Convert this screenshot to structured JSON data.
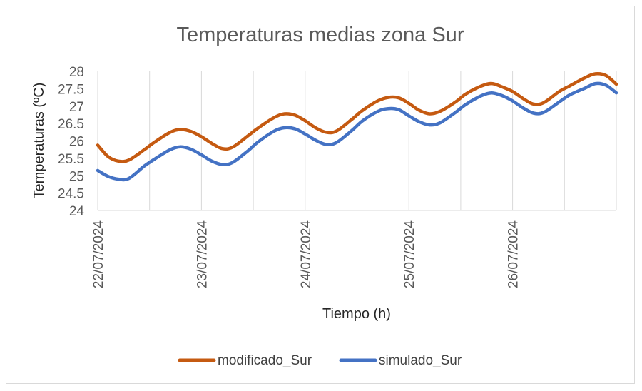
{
  "chart_data": {
    "type": "line",
    "title": "Temperaturas medias zona Sur",
    "xlabel": "Tiempo (h)",
    "ylabel": "Temperaturas (ºC)",
    "ylim": [
      24,
      28
    ],
    "yticks": [
      "24",
      "24.5",
      "25",
      "25.5",
      "26",
      "26.5",
      "27",
      "27.5",
      "28"
    ],
    "xlim_days": [
      0,
      5
    ],
    "xtick_labels": [
      "22/07/2024",
      "23/07/2024",
      "24/07/2024",
      "25/07/2024",
      "26/07/2024"
    ],
    "grid": true,
    "legend_position": "bottom",
    "series": [
      {
        "name": "modificado_Sur",
        "color": "#c55a11",
        "x_days": [
          0.0,
          0.1,
          0.2,
          0.3,
          0.45,
          0.55,
          0.7,
          0.8,
          0.9,
          1.0,
          1.1,
          1.2,
          1.3,
          1.45,
          1.55,
          1.7,
          1.8,
          1.9,
          2.0,
          2.1,
          2.2,
          2.3,
          2.45,
          2.55,
          2.7,
          2.8,
          2.9,
          3.0,
          3.1,
          3.2,
          3.3,
          3.45,
          3.55,
          3.7,
          3.8,
          3.9,
          4.0,
          4.1,
          4.2,
          4.3,
          4.45,
          4.55,
          4.7,
          4.8,
          4.9,
          5.0
        ],
        "values": [
          25.88,
          25.55,
          25.42,
          25.45,
          25.75,
          25.97,
          26.25,
          26.33,
          26.27,
          26.12,
          25.93,
          25.78,
          25.82,
          26.15,
          26.38,
          26.67,
          26.78,
          26.74,
          26.58,
          26.38,
          26.25,
          26.28,
          26.62,
          26.87,
          27.15,
          27.25,
          27.24,
          27.08,
          26.88,
          26.78,
          26.85,
          27.12,
          27.35,
          27.58,
          27.65,
          27.55,
          27.42,
          27.22,
          27.06,
          27.1,
          27.42,
          27.58,
          27.82,
          27.93,
          27.88,
          27.63
        ]
      },
      {
        "name": "simulado_Sur",
        "color": "#4472c4",
        "x_days": [
          0.0,
          0.1,
          0.2,
          0.3,
          0.45,
          0.55,
          0.7,
          0.8,
          0.9,
          1.0,
          1.1,
          1.2,
          1.3,
          1.45,
          1.55,
          1.7,
          1.8,
          1.9,
          2.0,
          2.1,
          2.2,
          2.3,
          2.45,
          2.55,
          2.7,
          2.8,
          2.9,
          3.0,
          3.1,
          3.2,
          3.3,
          3.45,
          3.55,
          3.7,
          3.8,
          3.9,
          4.0,
          4.1,
          4.2,
          4.3,
          4.45,
          4.55,
          4.7,
          4.8,
          4.9,
          5.0
        ],
        "values": [
          25.15,
          24.98,
          24.9,
          24.92,
          25.28,
          25.48,
          25.75,
          25.83,
          25.76,
          25.6,
          25.42,
          25.32,
          25.38,
          25.72,
          25.98,
          26.28,
          26.38,
          26.35,
          26.2,
          26.02,
          25.9,
          25.95,
          26.3,
          26.57,
          26.85,
          26.93,
          26.9,
          26.72,
          26.55,
          26.46,
          26.52,
          26.82,
          27.05,
          27.3,
          27.38,
          27.3,
          27.15,
          26.95,
          26.8,
          26.82,
          27.12,
          27.32,
          27.52,
          27.65,
          27.6,
          27.38
        ]
      }
    ]
  }
}
